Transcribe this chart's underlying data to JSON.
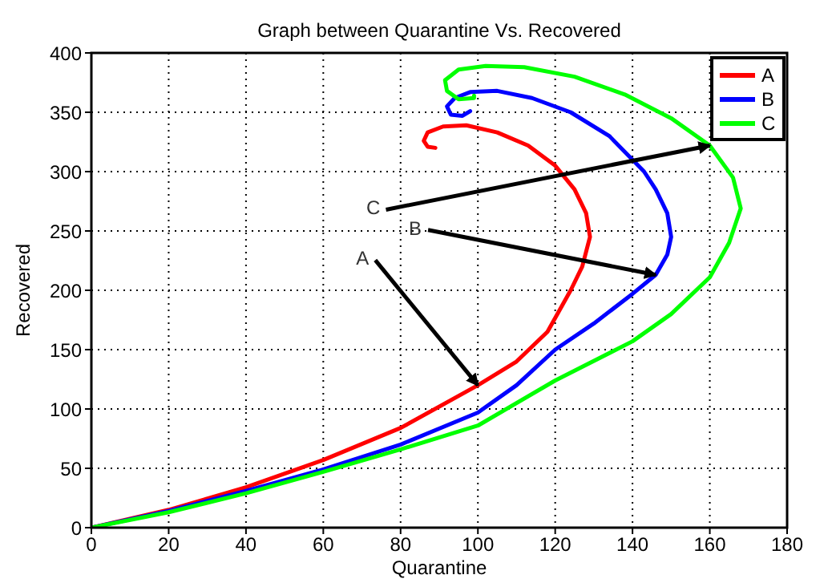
{
  "chart_data": {
    "type": "line",
    "title": "Graph between Quarantine Vs. Recovered",
    "xlabel": "Quarantine",
    "ylabel": "Recovered",
    "xlim": [
      0,
      180
    ],
    "xticks": [
      0,
      20,
      40,
      60,
      80,
      100,
      120,
      140,
      160,
      180
    ],
    "ylim": [
      0,
      400
    ],
    "yticks": [
      0,
      50,
      100,
      150,
      200,
      250,
      300,
      350,
      400
    ],
    "grid": true,
    "legend": "top right",
    "marker": "none",
    "line_style": "solid",
    "annotations": [
      {
        "text": "A",
        "x": 100,
        "y": 120
      },
      {
        "text": "B",
        "x": 146,
        "y": 213
      },
      {
        "text": "C",
        "x": 160,
        "y": 322
      }
    ],
    "series": [
      {
        "name": "A",
        "color": "#ff0000",
        "x": [
          0,
          20,
          40,
          60,
          80,
          100,
          110,
          118,
          124,
          127,
          129,
          128,
          125,
          120,
          113,
          105,
          97,
          91,
          87,
          86,
          87,
          89
        ],
        "values": [
          0,
          15,
          34,
          57,
          84,
          120,
          140,
          165,
          200,
          220,
          245,
          265,
          285,
          305,
          322,
          333,
          339,
          338,
          333,
          326,
          321,
          320
        ]
      },
      {
        "name": "B",
        "color": "#0000ff",
        "x": [
          0,
          20,
          40,
          60,
          80,
          100,
          110,
          120,
          130,
          140,
          146,
          149,
          150,
          149,
          146,
          143,
          134,
          124,
          114,
          105,
          98,
          94,
          92,
          93,
          96,
          98
        ],
        "values": [
          0,
          14,
          31,
          49,
          70,
          97,
          120,
          150,
          172,
          197,
          213,
          230,
          245,
          265,
          285,
          300,
          330,
          350,
          362,
          368,
          367,
          362,
          355,
          348,
          347,
          351
        ]
      },
      {
        "name": "C",
        "color": "#00ff00",
        "x": [
          0,
          20,
          40,
          60,
          80,
          100,
          120,
          140,
          150,
          160,
          165,
          168,
          166,
          160,
          150,
          138,
          125,
          112,
          102,
          95,
          91.5,
          92,
          95,
          99,
          99
        ],
        "values": [
          0,
          13,
          29,
          47,
          66,
          86,
          124,
          157,
          180,
          211,
          240,
          269,
          295,
          322,
          345,
          365,
          380,
          388,
          389,
          386,
          377,
          368,
          361,
          362,
          364
        ]
      }
    ]
  }
}
